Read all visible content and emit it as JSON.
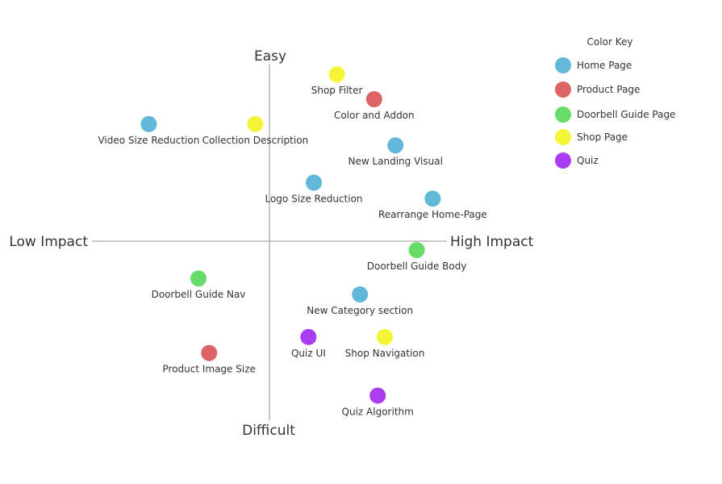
{
  "chart_data": {
    "type": "scatter",
    "title": "",
    "axes": {
      "top_label": "Easy",
      "bottom_label": "Difficult",
      "left_label": "Low Impact",
      "right_label": "High Impact"
    },
    "xlim": [
      -10,
      10
    ],
    "ylim": [
      -10,
      10
    ],
    "grid": false,
    "legend": {
      "title": "Color Key",
      "placement": "top-right",
      "entries": [
        {
          "category": "home",
          "label": "Home Page",
          "color": "#62b8d8"
        },
        {
          "category": "product",
          "label": "Product Page",
          "color": "#dc6464"
        },
        {
          "category": "doorbell",
          "label": "Doorbell Guide Page",
          "color": "#68db68"
        },
        {
          "category": "shop",
          "label": "Shop Page",
          "color": "#f5f538"
        },
        {
          "category": "quiz",
          "label": "Quiz",
          "color": "#aa3cf2"
        }
      ]
    },
    "points": [
      {
        "label": "Shop Filter",
        "category": "shop",
        "x": 3.8,
        "y": 9.4
      },
      {
        "label": "Color and Addon",
        "category": "product",
        "x": 5.9,
        "y": 8.0
      },
      {
        "label": "Video Size Reduction",
        "category": "home",
        "x": -6.8,
        "y": 6.6
      },
      {
        "label": "Collection Description",
        "category": "shop",
        "x": -0.8,
        "y": 6.6
      },
      {
        "label": "New Landing Visual",
        "category": "home",
        "x": 7.1,
        "y": 5.4
      },
      {
        "label": "Logo Size Reduction",
        "category": "home",
        "x": 2.5,
        "y": 3.3
      },
      {
        "label": "Rearrange Home-Page",
        "category": "home",
        "x": 9.2,
        "y": 2.4
      },
      {
        "label": "Doorbell Guide Body",
        "category": "doorbell",
        "x": 8.3,
        "y": -0.5
      },
      {
        "label": "Doorbell Guide Nav",
        "category": "doorbell",
        "x": -4.0,
        "y": -2.1
      },
      {
        "label": "New Category section",
        "category": "home",
        "x": 5.1,
        "y": -3.0
      },
      {
        "label": "Quiz UI",
        "category": "quiz",
        "x": 2.2,
        "y": -5.4
      },
      {
        "label": "Shop Navigation",
        "category": "shop",
        "x": 6.5,
        "y": -5.4
      },
      {
        "label": "Product Image Size",
        "category": "product",
        "x": -3.4,
        "y": -6.3
      },
      {
        "label": "Quiz Algorithm",
        "category": "quiz",
        "x": 6.1,
        "y": -8.7
      }
    ]
  }
}
